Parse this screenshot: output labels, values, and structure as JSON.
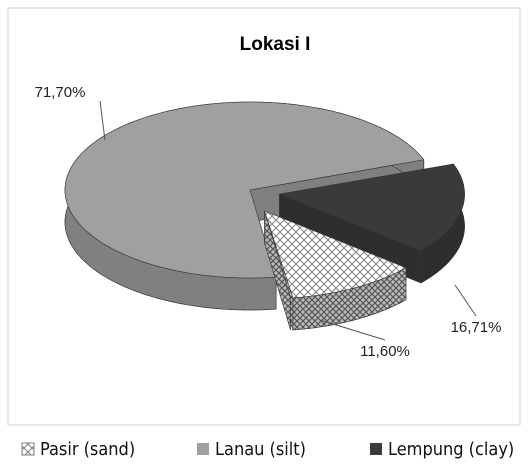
{
  "chart_data": {
    "type": "pie",
    "title": "Lokasi I",
    "categories": [
      "Pasir (sand)",
      "Lanau (silt)",
      "Lempung (clay)"
    ],
    "values": [
      11.6,
      71.7,
      16.71
    ],
    "value_labels": [
      "11,60%",
      "71,70%",
      "16,71%"
    ],
    "colors": [
      "#808080",
      "#a0a0a0",
      "#3a3a3a"
    ],
    "hatch": [
      true,
      false,
      false
    ],
    "legend": "bottom"
  }
}
